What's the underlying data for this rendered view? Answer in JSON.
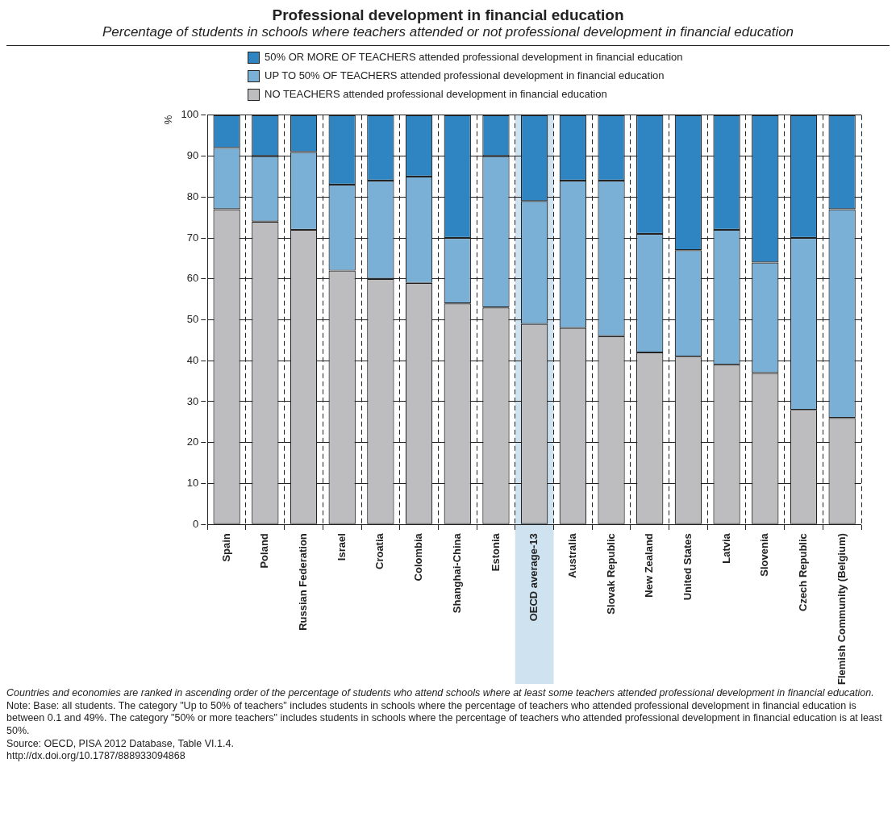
{
  "chart_data": {
    "type": "bar",
    "title": "Professional development in financial education",
    "subtitle": "Percentage of students in schools where teachers attended or not professional development in financial education",
    "ylabel": "%",
    "stacked": true,
    "legend": "top",
    "grid": true,
    "ylim": [
      0,
      100
    ],
    "yticks": [
      0,
      10,
      20,
      30,
      40,
      50,
      60,
      70,
      80,
      90,
      100
    ],
    "categories": [
      "Spain",
      "Poland",
      "Russian Federation",
      "Israel",
      "Croatia",
      "Colombia",
      "Shanghai-China",
      "Estonia",
      "OECD average-13",
      "Australia",
      "Slovak Republic",
      "New Zealand",
      "United States",
      "Latvia",
      "Slovenia",
      "Czech Republic",
      "Flemish Community (Belgium)"
    ],
    "bands": [
      {
        "axis": "x",
        "from": "OECD average-13",
        "to": "OECD average-13",
        "color": "#cfe2f0"
      }
    ],
    "series": [
      {
        "name": "NO TEACHERS attended professional development in financial education",
        "color": "#bdbdbf",
        "values": [
          77,
          74,
          72,
          62,
          60,
          59,
          54,
          53,
          49,
          48,
          46,
          42,
          41,
          39,
          37,
          28,
          26
        ]
      },
      {
        "name": "UP TO 50% OF TEACHERS attended professional development in financial education",
        "color": "#7bb0d6",
        "values": [
          15,
          16,
          19,
          21,
          24,
          26,
          16,
          37,
          30,
          36,
          38,
          29,
          26,
          33,
          27,
          42,
          51
        ]
      },
      {
        "name": "50% OR MORE OF TEACHERS attended professional development in financial education",
        "color": "#2f85c2",
        "values": [
          8,
          10,
          9,
          17,
          16,
          15,
          30,
          10,
          21,
          16,
          16,
          29,
          33,
          28,
          36,
          30,
          23
        ]
      }
    ],
    "annotations": [
      "Countries and economies are ranked in ascending order of the percentage of students who attend schools where at least some teachers attended professional development in financial education.",
      "Note: Base: all students. The category \"Up to 50% of teachers\" includes students in schools where the percentage of teachers who attended professional development in financial education is between 0.1 and 49%. The category \"50% or more teachers\" includes students in schools where the percentage of teachers who attended professional development in financial education is at least 50%.",
      "Source: OECD, PISA 2012 Database, Table VI.1.4.",
      "http://dx.doi.org/10.1787/888933094868"
    ]
  }
}
